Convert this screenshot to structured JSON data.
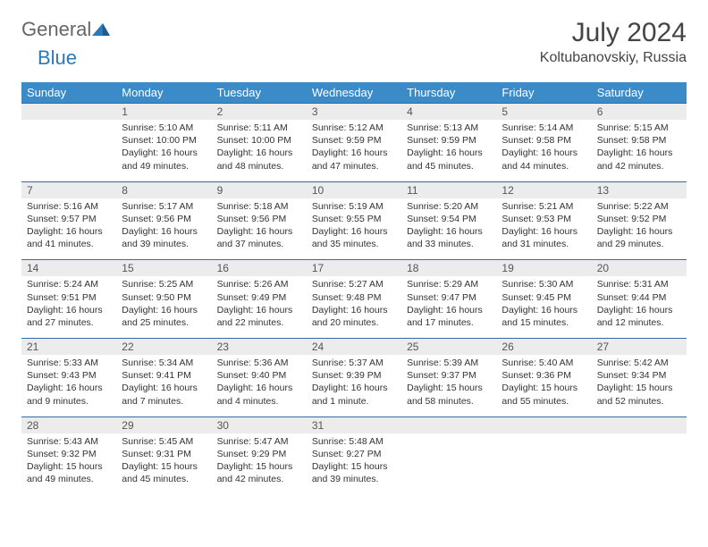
{
  "logo": {
    "part1": "General",
    "part2": "Blue"
  },
  "title": {
    "month": "July 2024",
    "location": "Koltubanovskiy, Russia"
  },
  "colors": {
    "header_bg": "#3b8bc8",
    "header_text": "#ffffff",
    "daynum_bg": "#ececec",
    "row_divider": "#2f6ea5",
    "body_text": "#333333"
  },
  "weekdays": [
    "Sunday",
    "Monday",
    "Tuesday",
    "Wednesday",
    "Thursday",
    "Friday",
    "Saturday"
  ],
  "weeks": [
    {
      "nums": [
        "",
        "1",
        "2",
        "3",
        "4",
        "5",
        "6"
      ],
      "cells": [
        null,
        {
          "sunrise": "Sunrise: 5:10 AM",
          "sunset": "Sunset: 10:00 PM",
          "day1": "Daylight: 16 hours",
          "day2": "and 49 minutes."
        },
        {
          "sunrise": "Sunrise: 5:11 AM",
          "sunset": "Sunset: 10:00 PM",
          "day1": "Daylight: 16 hours",
          "day2": "and 48 minutes."
        },
        {
          "sunrise": "Sunrise: 5:12 AM",
          "sunset": "Sunset: 9:59 PM",
          "day1": "Daylight: 16 hours",
          "day2": "and 47 minutes."
        },
        {
          "sunrise": "Sunrise: 5:13 AM",
          "sunset": "Sunset: 9:59 PM",
          "day1": "Daylight: 16 hours",
          "day2": "and 45 minutes."
        },
        {
          "sunrise": "Sunrise: 5:14 AM",
          "sunset": "Sunset: 9:58 PM",
          "day1": "Daylight: 16 hours",
          "day2": "and 44 minutes."
        },
        {
          "sunrise": "Sunrise: 5:15 AM",
          "sunset": "Sunset: 9:58 PM",
          "day1": "Daylight: 16 hours",
          "day2": "and 42 minutes."
        }
      ]
    },
    {
      "nums": [
        "7",
        "8",
        "9",
        "10",
        "11",
        "12",
        "13"
      ],
      "cells": [
        {
          "sunrise": "Sunrise: 5:16 AM",
          "sunset": "Sunset: 9:57 PM",
          "day1": "Daylight: 16 hours",
          "day2": "and 41 minutes."
        },
        {
          "sunrise": "Sunrise: 5:17 AM",
          "sunset": "Sunset: 9:56 PM",
          "day1": "Daylight: 16 hours",
          "day2": "and 39 minutes."
        },
        {
          "sunrise": "Sunrise: 5:18 AM",
          "sunset": "Sunset: 9:56 PM",
          "day1": "Daylight: 16 hours",
          "day2": "and 37 minutes."
        },
        {
          "sunrise": "Sunrise: 5:19 AM",
          "sunset": "Sunset: 9:55 PM",
          "day1": "Daylight: 16 hours",
          "day2": "and 35 minutes."
        },
        {
          "sunrise": "Sunrise: 5:20 AM",
          "sunset": "Sunset: 9:54 PM",
          "day1": "Daylight: 16 hours",
          "day2": "and 33 minutes."
        },
        {
          "sunrise": "Sunrise: 5:21 AM",
          "sunset": "Sunset: 9:53 PM",
          "day1": "Daylight: 16 hours",
          "day2": "and 31 minutes."
        },
        {
          "sunrise": "Sunrise: 5:22 AM",
          "sunset": "Sunset: 9:52 PM",
          "day1": "Daylight: 16 hours",
          "day2": "and 29 minutes."
        }
      ]
    },
    {
      "nums": [
        "14",
        "15",
        "16",
        "17",
        "18",
        "19",
        "20"
      ],
      "cells": [
        {
          "sunrise": "Sunrise: 5:24 AM",
          "sunset": "Sunset: 9:51 PM",
          "day1": "Daylight: 16 hours",
          "day2": "and 27 minutes."
        },
        {
          "sunrise": "Sunrise: 5:25 AM",
          "sunset": "Sunset: 9:50 PM",
          "day1": "Daylight: 16 hours",
          "day2": "and 25 minutes."
        },
        {
          "sunrise": "Sunrise: 5:26 AM",
          "sunset": "Sunset: 9:49 PM",
          "day1": "Daylight: 16 hours",
          "day2": "and 22 minutes."
        },
        {
          "sunrise": "Sunrise: 5:27 AM",
          "sunset": "Sunset: 9:48 PM",
          "day1": "Daylight: 16 hours",
          "day2": "and 20 minutes."
        },
        {
          "sunrise": "Sunrise: 5:29 AM",
          "sunset": "Sunset: 9:47 PM",
          "day1": "Daylight: 16 hours",
          "day2": "and 17 minutes."
        },
        {
          "sunrise": "Sunrise: 5:30 AM",
          "sunset": "Sunset: 9:45 PM",
          "day1": "Daylight: 16 hours",
          "day2": "and 15 minutes."
        },
        {
          "sunrise": "Sunrise: 5:31 AM",
          "sunset": "Sunset: 9:44 PM",
          "day1": "Daylight: 16 hours",
          "day2": "and 12 minutes."
        }
      ]
    },
    {
      "nums": [
        "21",
        "22",
        "23",
        "24",
        "25",
        "26",
        "27"
      ],
      "cells": [
        {
          "sunrise": "Sunrise: 5:33 AM",
          "sunset": "Sunset: 9:43 PM",
          "day1": "Daylight: 16 hours",
          "day2": "and 9 minutes."
        },
        {
          "sunrise": "Sunrise: 5:34 AM",
          "sunset": "Sunset: 9:41 PM",
          "day1": "Daylight: 16 hours",
          "day2": "and 7 minutes."
        },
        {
          "sunrise": "Sunrise: 5:36 AM",
          "sunset": "Sunset: 9:40 PM",
          "day1": "Daylight: 16 hours",
          "day2": "and 4 minutes."
        },
        {
          "sunrise": "Sunrise: 5:37 AM",
          "sunset": "Sunset: 9:39 PM",
          "day1": "Daylight: 16 hours",
          "day2": "and 1 minute."
        },
        {
          "sunrise": "Sunrise: 5:39 AM",
          "sunset": "Sunset: 9:37 PM",
          "day1": "Daylight: 15 hours",
          "day2": "and 58 minutes."
        },
        {
          "sunrise": "Sunrise: 5:40 AM",
          "sunset": "Sunset: 9:36 PM",
          "day1": "Daylight: 15 hours",
          "day2": "and 55 minutes."
        },
        {
          "sunrise": "Sunrise: 5:42 AM",
          "sunset": "Sunset: 9:34 PM",
          "day1": "Daylight: 15 hours",
          "day2": "and 52 minutes."
        }
      ]
    },
    {
      "nums": [
        "28",
        "29",
        "30",
        "31",
        "",
        "",
        ""
      ],
      "cells": [
        {
          "sunrise": "Sunrise: 5:43 AM",
          "sunset": "Sunset: 9:32 PM",
          "day1": "Daylight: 15 hours",
          "day2": "and 49 minutes."
        },
        {
          "sunrise": "Sunrise: 5:45 AM",
          "sunset": "Sunset: 9:31 PM",
          "day1": "Daylight: 15 hours",
          "day2": "and 45 minutes."
        },
        {
          "sunrise": "Sunrise: 5:47 AM",
          "sunset": "Sunset: 9:29 PM",
          "day1": "Daylight: 15 hours",
          "day2": "and 42 minutes."
        },
        {
          "sunrise": "Sunrise: 5:48 AM",
          "sunset": "Sunset: 9:27 PM",
          "day1": "Daylight: 15 hours",
          "day2": "and 39 minutes."
        },
        null,
        null,
        null
      ]
    }
  ]
}
